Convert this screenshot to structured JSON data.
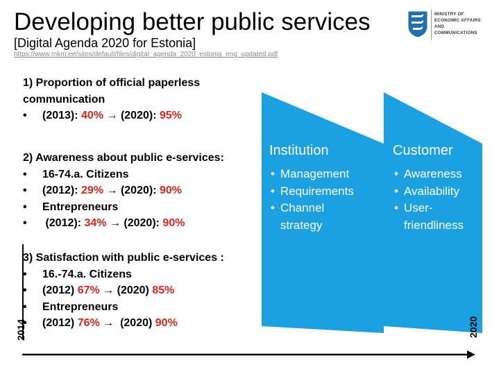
{
  "header": {
    "title": "Developing better public services",
    "subtitle": "[Digital Agenda 2020 for Estonia]",
    "url": "https://www.mkm.ee/sites/default/files/digital_agenda_2020_estonia_eng_updated.pdf"
  },
  "logo": {
    "line1": "Ministry of",
    "line2": "Economic Affairs and",
    "line3": "Communications",
    "icon": "three-lions-shield-icon"
  },
  "indicators": [
    {
      "heading_line1": "1) Proportion of official paperless",
      "heading_line2": "communication",
      "bullets": [
        {
          "label": "(2013): ",
          "from": "40%",
          "arrow": " → (2020): ",
          "to": "95%"
        }
      ]
    },
    {
      "heading": "2) Awareness about public e-services:",
      "bullets": [
        {
          "text": "16-74.a. Citizens"
        },
        {
          "label": "(2012): ",
          "from": "29%",
          "arrow": " → (2020): ",
          "to": "90%"
        },
        {
          "text": "Entrepreneurs"
        },
        {
          "label": " (2012): ",
          "from": "34%",
          "arrow": " → (2020): ",
          "to": "90%"
        }
      ]
    },
    {
      "heading": "3) Satisfaction with public e-services :",
      "bullets": [
        {
          "text": "16.-74.a. Citizens"
        },
        {
          "label": "(2012) ",
          "from": "67%",
          "arrow": " → (2020) ",
          "to": "85%"
        },
        {
          "text": "Entrepreneurs"
        },
        {
          "label": "(2012) ",
          "from": "76%",
          "arrow": " →  (2020) ",
          "to": "90%"
        }
      ]
    }
  ],
  "bullet_char": "•",
  "columns": [
    {
      "heading": "Institution",
      "items": [
        "Management",
        "Requirements",
        "Channel strategy"
      ]
    },
    {
      "heading": "Customer",
      "items": [
        "Awareness",
        "Availability",
        "User-friendliness"
      ]
    }
  ],
  "timeline": {
    "start": "2014",
    "end": "2020"
  },
  "colors": {
    "accent": "#1ba1e2",
    "highlight": "#e0261c",
    "text": "#000000"
  }
}
